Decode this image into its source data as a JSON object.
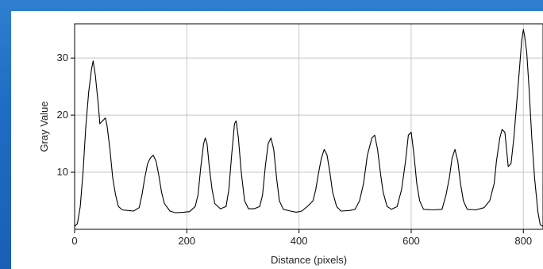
{
  "chart_data": {
    "type": "line",
    "title": "",
    "xlabel": "Distance (pixels)",
    "ylabel": "Gray Value",
    "xlim": [
      0,
      835
    ],
    "ylim": [
      0,
      36
    ],
    "grid": true,
    "x_ticks": [
      0,
      200,
      400,
      600,
      800
    ],
    "y_ticks": [
      10,
      20,
      30
    ],
    "series": [
      {
        "values": [
          [
            0,
            0.5
          ],
          [
            5,
            1
          ],
          [
            10,
            4
          ],
          [
            15,
            10
          ],
          [
            20,
            18
          ],
          [
            25,
            24
          ],
          [
            30,
            28
          ],
          [
            33,
            29.5
          ],
          [
            37,
            27
          ],
          [
            42,
            22
          ],
          [
            45,
            18.5
          ],
          [
            50,
            19
          ],
          [
            55,
            19.5
          ],
          [
            58,
            18
          ],
          [
            63,
            14
          ],
          [
            68,
            9
          ],
          [
            73,
            6
          ],
          [
            78,
            4
          ],
          [
            85,
            3.4
          ],
          [
            95,
            3.3
          ],
          [
            105,
            3.2
          ],
          [
            115,
            3.8
          ],
          [
            120,
            6
          ],
          [
            125,
            9
          ],
          [
            130,
            11.5
          ],
          [
            135,
            12.5
          ],
          [
            140,
            13
          ],
          [
            145,
            12
          ],
          [
            150,
            9.5
          ],
          [
            155,
            6.5
          ],
          [
            160,
            4.5
          ],
          [
            170,
            3.2
          ],
          [
            180,
            2.9
          ],
          [
            195,
            3
          ],
          [
            205,
            3.1
          ],
          [
            215,
            4
          ],
          [
            220,
            6
          ],
          [
            225,
            11
          ],
          [
            230,
            15
          ],
          [
            233,
            16
          ],
          [
            236,
            15
          ],
          [
            240,
            11
          ],
          [
            245,
            7
          ],
          [
            250,
            4.5
          ],
          [
            260,
            3.6
          ],
          [
            270,
            4
          ],
          [
            275,
            7
          ],
          [
            280,
            13
          ],
          [
            285,
            18.5
          ],
          [
            288,
            19
          ],
          [
            292,
            16
          ],
          [
            297,
            10
          ],
          [
            303,
            5
          ],
          [
            310,
            3.6
          ],
          [
            320,
            3.6
          ],
          [
            330,
            4
          ],
          [
            335,
            6
          ],
          [
            340,
            11
          ],
          [
            345,
            15
          ],
          [
            350,
            16
          ],
          [
            355,
            14
          ],
          [
            360,
            9
          ],
          [
            365,
            5
          ],
          [
            372,
            3.5
          ],
          [
            385,
            3.2
          ],
          [
            395,
            3
          ],
          [
            405,
            3.2
          ],
          [
            415,
            4
          ],
          [
            425,
            5
          ],
          [
            430,
            7
          ],
          [
            435,
            10
          ],
          [
            440,
            12.5
          ],
          [
            445,
            14
          ],
          [
            450,
            13
          ],
          [
            455,
            10
          ],
          [
            460,
            6.5
          ],
          [
            467,
            4
          ],
          [
            475,
            3.2
          ],
          [
            490,
            3.3
          ],
          [
            500,
            3.5
          ],
          [
            508,
            5
          ],
          [
            515,
            8
          ],
          [
            522,
            13
          ],
          [
            530,
            16
          ],
          [
            535,
            16.5
          ],
          [
            540,
            14
          ],
          [
            545,
            10
          ],
          [
            550,
            6.5
          ],
          [
            557,
            4
          ],
          [
            565,
            3.5
          ],
          [
            575,
            4
          ],
          [
            583,
            7
          ],
          [
            590,
            12
          ],
          [
            595,
            16.5
          ],
          [
            600,
            17
          ],
          [
            605,
            13
          ],
          [
            610,
            8
          ],
          [
            615,
            5
          ],
          [
            622,
            3.5
          ],
          [
            640,
            3.4
          ],
          [
            655,
            3.5
          ],
          [
            662,
            6
          ],
          [
            668,
            9
          ],
          [
            673,
            12.5
          ],
          [
            678,
            14
          ],
          [
            683,
            12
          ],
          [
            688,
            8
          ],
          [
            693,
            5
          ],
          [
            700,
            3.5
          ],
          [
            715,
            3.4
          ],
          [
            730,
            3.8
          ],
          [
            740,
            5
          ],
          [
            748,
            8
          ],
          [
            752,
            12
          ],
          [
            758,
            16
          ],
          [
            762,
            17.5
          ],
          [
            767,
            17
          ],
          [
            770,
            14
          ],
          [
            773,
            11
          ],
          [
            778,
            11.5
          ],
          [
            783,
            16
          ],
          [
            788,
            22
          ],
          [
            793,
            28
          ],
          [
            797,
            33
          ],
          [
            800,
            35
          ],
          [
            802,
            34
          ],
          [
            806,
            31
          ],
          [
            810,
            25
          ],
          [
            815,
            16
          ],
          [
            820,
            9
          ],
          [
            826,
            3
          ],
          [
            830,
            0.8
          ],
          [
            835,
            0.5
          ]
        ]
      }
    ]
  }
}
